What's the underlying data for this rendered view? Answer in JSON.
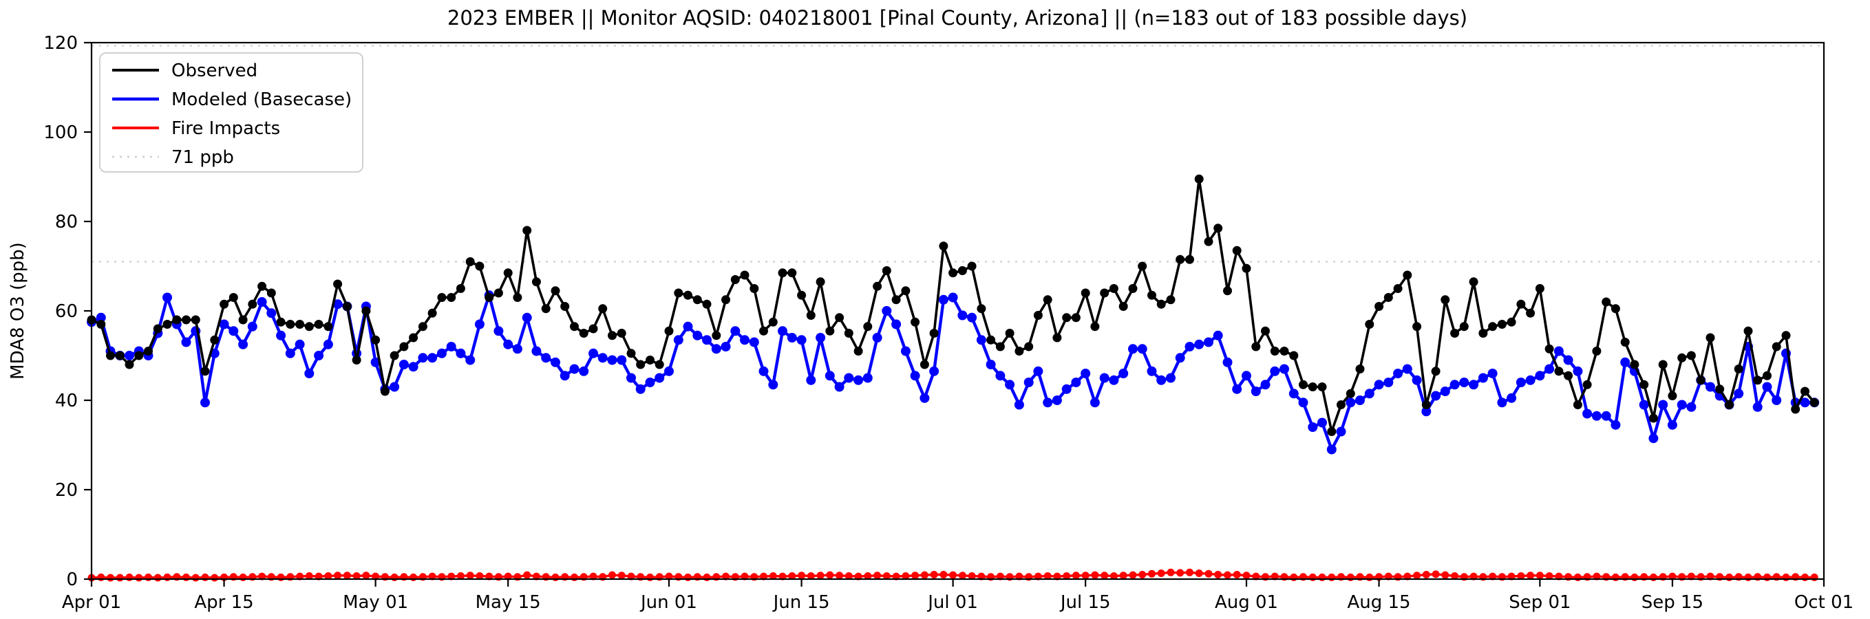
{
  "chart_data": {
    "type": "line",
    "title": "2023 EMBER || Monitor AQSID: 040218001 [Pinal County, Arizona] || (n=183 out of 183 possible days)",
    "xlabel": "",
    "ylabel": "MDA8 O3 (ppb)",
    "ylim": [
      0,
      120
    ],
    "y_ticks": [
      0,
      20,
      40,
      60,
      80,
      100,
      120
    ],
    "n_days": 183,
    "x_tick_days": [
      0,
      14,
      30,
      44,
      61,
      75,
      91,
      105,
      122,
      136,
      153,
      167,
      183
    ],
    "x_tick_labels": [
      "Apr 01",
      "Apr 15",
      "May 01",
      "May 15",
      "Jun 01",
      "Jun 15",
      "Jul 01",
      "Jul 15",
      "Aug 01",
      "Aug 15",
      "Sep 01",
      "Sep 15",
      "Oct 01"
    ],
    "grid": false,
    "legend_position": "upper-left",
    "reference_lines": [
      {
        "value": 71,
        "label": "71 ppb",
        "color": "#d3d3d3",
        "style": "dotted"
      },
      {
        "value": 120,
        "label": "",
        "color": "#d3d3d3",
        "style": "dotted"
      }
    ],
    "series": [
      {
        "name": "Observed",
        "color": "#000000",
        "marker": "circle",
        "values": [
          58,
          57,
          50,
          50,
          48,
          50,
          51,
          56,
          57,
          58,
          58,
          58,
          46.5,
          53.5,
          61.5,
          63,
          58,
          61.5,
          65.5,
          64,
          57.5,
          57,
          57,
          56.5,
          57,
          56.5,
          66,
          61,
          49,
          60,
          53.5,
          42,
          50,
          52,
          54,
          56.5,
          59.5,
          63,
          63,
          65,
          71,
          70,
          63,
          64,
          68.5,
          63,
          78,
          66.5,
          60.5,
          64.5,
          61,
          56.5,
          55,
          56,
          60.5,
          54.5,
          55,
          50.5,
          48,
          49,
          48,
          55.5,
          64,
          63.5,
          62.5,
          61.5,
          54.5,
          62.5,
          67,
          68,
          65,
          55.5,
          57.5,
          68.5,
          68.5,
          63.5,
          59,
          66.5,
          55.5,
          58.5,
          55,
          51,
          56.5,
          65.5,
          69,
          62.5,
          64.5,
          57.5,
          48,
          55,
          74.5,
          68.5,
          69,
          70,
          60.5,
          53.5,
          52,
          55,
          51,
          52,
          59,
          62.5,
          54,
          58.5,
          58.5,
          64,
          56.5,
          64,
          65,
          61,
          65,
          70,
          63.5,
          61.5,
          62.5,
          71.5,
          71.5,
          89.5,
          75.5,
          78.5,
          64.5,
          73.5,
          69.5,
          52,
          55.5,
          51,
          51,
          50,
          43.5,
          43,
          43,
          33,
          39,
          41.5,
          47,
          57,
          61,
          63,
          65,
          68,
          56.5,
          39,
          46.5,
          62.5,
          55,
          56.5,
          66.5,
          55,
          56.5,
          57,
          57.5,
          61.5,
          59.5,
          65,
          51.5,
          46.5,
          45.5,
          39,
          43.5,
          51,
          62,
          60.5,
          53,
          48,
          43.5,
          36,
          48,
          41,
          49.5,
          50,
          44.5,
          54,
          42.5,
          39,
          47,
          55.5,
          44.5,
          45.5,
          52,
          54.5,
          38,
          42,
          39.5
        ]
      },
      {
        "name": "Modeled (Basecase)",
        "color": "#0000ff",
        "marker": "circle",
        "values": [
          57.5,
          58.5,
          51,
          50,
          50,
          51,
          50,
          55,
          63,
          57,
          53,
          55.5,
          39.5,
          50.5,
          57,
          55.5,
          52.5,
          56.5,
          62,
          59.5,
          54.5,
          50.5,
          52.5,
          46,
          50,
          52.5,
          61.5,
          61,
          50.5,
          61,
          48.5,
          42.5,
          43,
          48,
          47.5,
          49.5,
          49.5,
          50.5,
          52,
          50.5,
          49,
          57,
          63.5,
          55.5,
          52.5,
          51.5,
          58.5,
          51,
          49.5,
          48.5,
          45.5,
          47,
          46.5,
          50.5,
          49.5,
          49,
          49,
          45,
          42.5,
          44,
          45,
          46.5,
          53.5,
          56.5,
          54.5,
          53.5,
          51.5,
          52,
          55.5,
          53.5,
          53,
          46.5,
          43.5,
          55.5,
          54,
          53.5,
          44.5,
          54,
          45.5,
          43,
          45,
          44.5,
          45,
          54,
          60,
          57,
          51,
          45.5,
          40.5,
          46.5,
          62.5,
          63,
          59,
          58.5,
          53.5,
          48,
          45.5,
          43.5,
          39,
          44,
          46.5,
          39.5,
          40,
          42.5,
          44,
          46,
          39.5,
          45,
          44.5,
          46,
          51.5,
          51.5,
          46.5,
          44.5,
          45,
          49.5,
          52,
          52.5,
          53,
          54.5,
          48.5,
          42.5,
          45.5,
          42,
          43.5,
          46.5,
          47,
          41.5,
          39.5,
          34,
          35,
          29,
          33,
          39.5,
          40,
          41.5,
          43.5,
          44,
          46,
          47,
          44.5,
          37.5,
          41,
          42,
          43.5,
          44,
          43.5,
          45,
          46,
          39.5,
          40.5,
          44,
          44.5,
          45.5,
          47,
          51,
          49,
          46.5,
          37,
          36.5,
          36.5,
          34.5,
          48.5,
          46.5,
          39,
          31.5,
          39,
          34.5,
          39,
          38.5,
          44.5,
          43,
          41,
          39,
          41.5,
          52,
          38.5,
          43,
          40,
          50.5,
          39.5,
          39.5,
          39.5
        ]
      },
      {
        "name": "Fire Impacts",
        "color": "#ff0000",
        "marker": "circle",
        "values": [
          0.3,
          0.4,
          0.3,
          0.3,
          0.4,
          0.3,
          0.4,
          0.3,
          0.4,
          0.5,
          0.4,
          0.3,
          0.4,
          0.3,
          0.4,
          0.5,
          0.4,
          0.5,
          0.6,
          0.5,
          0.4,
          0.5,
          0.6,
          0.7,
          0.6,
          0.7,
          0.8,
          0.8,
          0.7,
          0.8,
          0.6,
          0.5,
          0.4,
          0.5,
          0.4,
          0.5,
          0.6,
          0.5,
          0.6,
          0.7,
          0.8,
          0.7,
          0.6,
          0.5,
          0.6,
          0.5,
          0.9,
          0.6,
          0.5,
          0.4,
          0.5,
          0.4,
          0.5,
          0.6,
          0.5,
          0.9,
          0.8,
          0.6,
          0.5,
          0.4,
          0.5,
          0.6,
          0.5,
          0.4,
          0.5,
          0.4,
          0.5,
          0.6,
          0.5,
          0.6,
          0.5,
          0.6,
          0.7,
          0.6,
          0.7,
          0.8,
          0.7,
          0.8,
          0.9,
          0.8,
          0.7,
          0.6,
          0.7,
          0.8,
          0.7,
          0.6,
          0.7,
          0.8,
          0.9,
          1.0,
          1.0,
          0.9,
          0.8,
          0.7,
          0.6,
          0.5,
          0.6,
          0.5,
          0.6,
          0.5,
          0.6,
          0.7,
          0.6,
          0.7,
          0.8,
          0.8,
          0.9,
          0.8,
          0.7,
          0.8,
          0.9,
          1.0,
          1.2,
          1.3,
          1.5,
          1.4,
          1.5,
          1.3,
          1.2,
          1.0,
          0.9,
          1.0,
          0.8,
          0.6,
          0.5,
          0.6,
          0.5,
          0.4,
          0.5,
          0.4,
          0.4,
          0.4,
          0.5,
          0.4,
          0.5,
          0.4,
          0.5,
          0.6,
          0.5,
          0.6,
          0.8,
          1.0,
          1.1,
          0.9,
          0.7,
          0.5,
          0.6,
          0.5,
          0.6,
          0.5,
          0.6,
          0.7,
          0.8,
          0.8,
          0.7,
          0.6,
          0.5,
          0.4,
          0.5,
          0.6,
          0.5,
          0.4,
          0.5,
          0.4,
          0.5,
          0.4,
          0.5,
          0.6,
          0.5,
          0.6,
          0.5,
          0.6,
          0.5,
          0.4,
          0.5,
          0.4,
          0.5,
          0.4,
          0.5,
          0.4,
          0.5,
          0.4,
          0.4
        ]
      }
    ]
  },
  "legend": {
    "observed_label": "Observed",
    "modeled_label": "Modeled (Basecase)",
    "fire_label": "Fire Impacts",
    "refline_label": "71 ppb"
  }
}
